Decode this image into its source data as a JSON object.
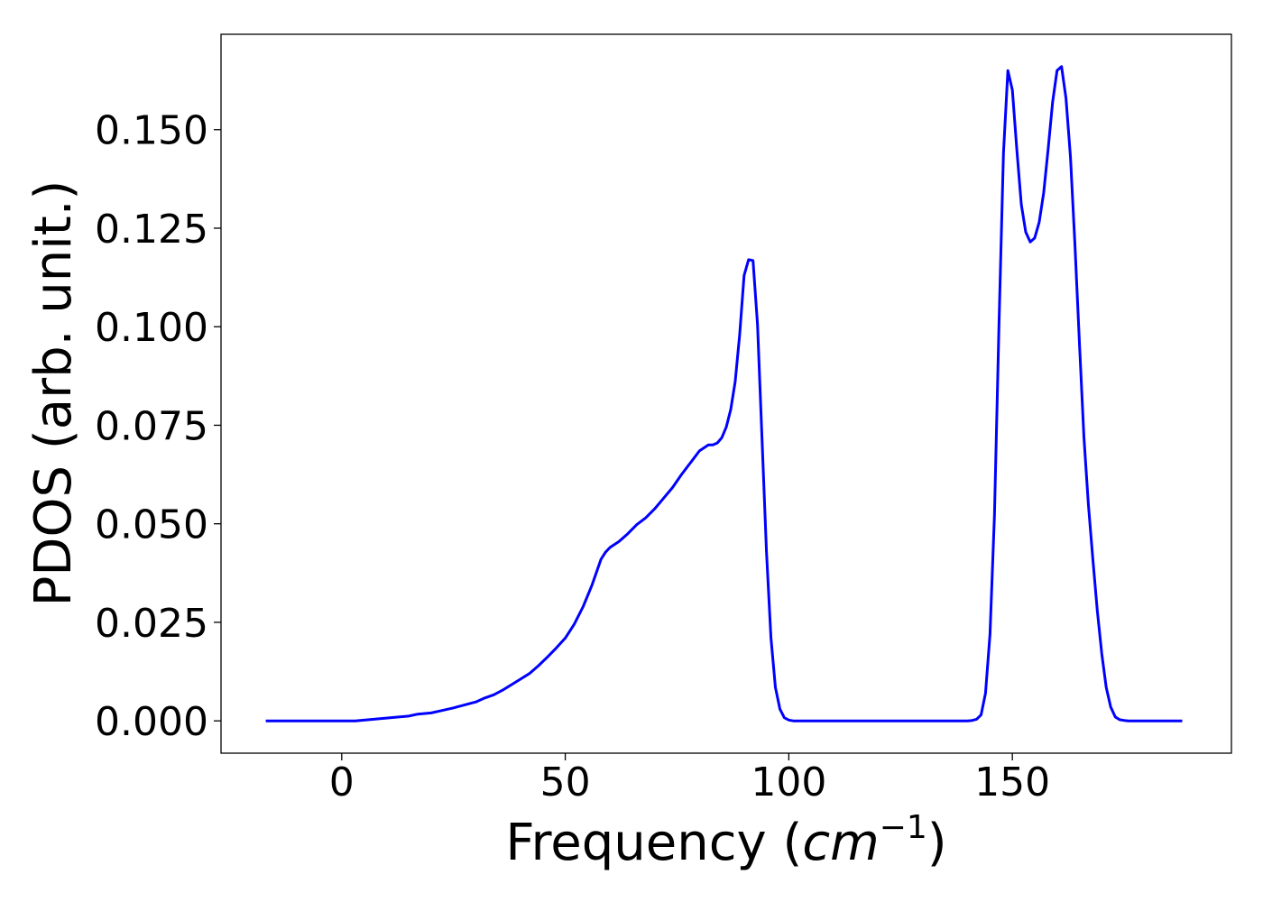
{
  "chart_data": {
    "type": "line",
    "title": "",
    "xlabel": "Frequency (",
    "xlabel_math": "cm",
    "xlabel_sup": "−1",
    "xlabel_close": ")",
    "ylabel": "PDOS (arb. unit.)",
    "xlim": [
      -27,
      199
    ],
    "ylim": [
      -0.0082,
      0.1742
    ],
    "xticks": [
      0,
      50,
      100,
      150
    ],
    "xtick_labels": [
      "0",
      "50",
      "100",
      "150"
    ],
    "yticks": [
      0,
      0.025,
      0.05,
      0.075,
      0.1,
      0.125,
      0.15
    ],
    "ytick_labels": [
      "0.000",
      "0.025",
      "0.050",
      "0.075",
      "0.100",
      "0.125",
      "0.150"
    ],
    "grid": false,
    "legend": "none",
    "series": [
      {
        "color": "#0000ff",
        "x": [
          -17,
          0,
          3,
          8,
          13,
          15,
          17,
          20,
          22,
          25,
          28,
          30,
          32,
          34,
          36,
          38,
          40,
          42,
          44,
          46,
          48,
          50,
          52,
          54,
          56,
          58,
          59,
          60,
          62,
          64,
          66,
          68,
          70,
          72,
          74,
          76,
          78,
          80,
          82,
          83,
          84,
          85,
          86,
          87,
          88,
          89,
          90,
          91,
          92,
          93,
          94,
          95,
          96,
          97,
          98,
          99,
          100,
          101,
          110,
          120,
          130,
          140,
          141,
          142,
          143,
          144,
          145,
          146,
          147,
          148,
          149,
          150,
          151,
          152,
          153,
          154,
          155,
          156,
          157,
          158,
          159,
          160,
          161,
          162,
          163,
          164,
          165,
          166,
          167,
          168,
          169,
          170,
          171,
          172,
          173,
          174,
          175,
          176,
          178,
          188
        ],
        "values": [
          0,
          0,
          0,
          0.0005,
          0.001,
          0.0012,
          0.0017,
          0.002,
          0.0025,
          0.0033,
          0.0042,
          0.0048,
          0.0058,
          0.0066,
          0.0078,
          0.0092,
          0.0106,
          0.012,
          0.014,
          0.0162,
          0.0185,
          0.021,
          0.0245,
          0.029,
          0.0345,
          0.041,
          0.0428,
          0.044,
          0.0455,
          0.0475,
          0.0498,
          0.0515,
          0.0538,
          0.0565,
          0.0592,
          0.0625,
          0.0655,
          0.0685,
          0.07,
          0.07,
          0.0705,
          0.0718,
          0.0745,
          0.079,
          0.086,
          0.098,
          0.113,
          0.117,
          0.1168,
          0.1005,
          0.072,
          0.043,
          0.021,
          0.0085,
          0.003,
          0.0008,
          0.0002,
          0,
          0,
          0,
          0,
          0,
          0.0001,
          0.0004,
          0.0015,
          0.007,
          0.022,
          0.052,
          0.1,
          0.144,
          0.165,
          0.16,
          0.145,
          0.131,
          0.124,
          0.1215,
          0.1225,
          0.1265,
          0.134,
          0.145,
          0.157,
          0.165,
          0.166,
          0.158,
          0.143,
          0.121,
          0.096,
          0.072,
          0.055,
          0.041,
          0.028,
          0.017,
          0.0085,
          0.0035,
          0.001,
          0.0003,
          0.0001,
          0,
          0,
          0
        ]
      }
    ]
  }
}
